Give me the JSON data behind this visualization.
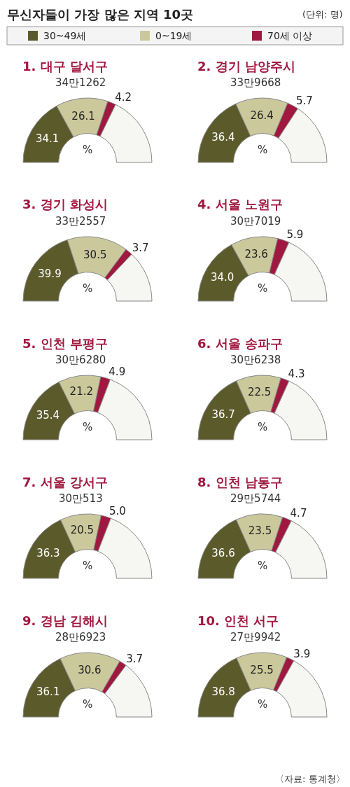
{
  "chart_data": [
    {
      "type": "other",
      "title": "무신자들이 가장 많은 지역 10곳",
      "subtitle": "(단위: 명)",
      "annotations": [
        "〈자료: 통계청〉"
      ]
    },
    {
      "type": "donut",
      "title": "1. 대구 달서구",
      "subtitle": "34만1262",
      "categories": [
        "30~49세",
        "0~19세",
        "70세 이상",
        null
      ],
      "values": [
        34.1,
        26.1,
        4.2,
        35.6
      ],
      "colors": [
        "#5b5a2b",
        "#cbc99c",
        "#a01840",
        "#f6f6f2"
      ],
      "value_labels": [
        "34.1",
        "26.1",
        "4.2",
        null
      ],
      "annotations": [
        "%"
      ],
      "legend": "top"
    },
    {
      "type": "donut",
      "title": "2. 경기 남양주시",
      "subtitle": "33만9668",
      "categories": [
        null,
        null,
        null,
        null
      ],
      "values": [
        36.4,
        26.4,
        5.7,
        31.5
      ],
      "colors": [
        "#5b5a2b",
        "#cbc99c",
        "#a01840",
        "#f6f6f2"
      ],
      "value_labels": [
        "36.4",
        "26.4",
        "5.7",
        null
      ],
      "annotations": [
        "%"
      ]
    },
    {
      "type": "donut",
      "title": "3. 경기 화성시",
      "subtitle": "33만2557",
      "categories": [
        null,
        null,
        null,
        null
      ],
      "values": [
        39.9,
        30.5,
        3.7,
        25.9
      ],
      "colors": [
        "#5b5a2b",
        "#cbc99c",
        "#a01840",
        "#f6f6f2"
      ],
      "value_labels": [
        "39.9",
        "30.5",
        "3.7",
        null
      ],
      "annotations": [
        "%"
      ]
    },
    {
      "type": "donut",
      "title": "4. 서울 노원구",
      "subtitle": "30만7019",
      "categories": [
        null,
        null,
        null,
        null
      ],
      "values": [
        34.0,
        23.6,
        5.9,
        36.5
      ],
      "colors": [
        "#5b5a2b",
        "#cbc99c",
        "#a01840",
        "#f6f6f2"
      ],
      "value_labels": [
        "34.0",
        "23.6",
        "5.9",
        null
      ],
      "annotations": [
        "%"
      ]
    },
    {
      "type": "donut",
      "title": "5. 인천 부평구",
      "subtitle": "30만6280",
      "categories": [
        null,
        null,
        null,
        null
      ],
      "values": [
        35.4,
        21.2,
        4.9,
        38.5
      ],
      "colors": [
        "#5b5a2b",
        "#cbc99c",
        "#a01840",
        "#f6f6f2"
      ],
      "value_labels": [
        "35.4",
        "21.2",
        "4.9",
        null
      ],
      "annotations": [
        "%"
      ]
    },
    {
      "type": "donut",
      "title": "6. 서울 송파구",
      "subtitle": "30만6238",
      "categories": [
        null,
        null,
        null,
        null
      ],
      "values": [
        36.7,
        22.5,
        4.3,
        36.5
      ],
      "colors": [
        "#5b5a2b",
        "#cbc99c",
        "#a01840",
        "#f6f6f2"
      ],
      "value_labels": [
        "36.7",
        "22.5",
        "4.3",
        null
      ],
      "annotations": [
        "%"
      ]
    },
    {
      "type": "donut",
      "title": "7. 서울 강서구",
      "subtitle": "30만513",
      "categories": [
        null,
        null,
        null,
        null
      ],
      "values": [
        36.3,
        20.5,
        5.0,
        38.2
      ],
      "colors": [
        "#5b5a2b",
        "#cbc99c",
        "#a01840",
        "#f6f6f2"
      ],
      "value_labels": [
        "36.3",
        "20.5",
        "5.0",
        null
      ],
      "annotations": [
        "%"
      ]
    },
    {
      "type": "donut",
      "title": "8. 인천 남동구",
      "subtitle": "29만5744",
      "categories": [
        null,
        null,
        null,
        null
      ],
      "values": [
        36.6,
        23.5,
        4.7,
        35.2
      ],
      "colors": [
        "#5b5a2b",
        "#cbc99c",
        "#a01840",
        "#f6f6f2"
      ],
      "value_labels": [
        "36.6",
        "23.5",
        "4.7",
        null
      ],
      "annotations": [
        "%"
      ]
    },
    {
      "type": "donut",
      "title": "9. 경남 김해시",
      "subtitle": "28만6923",
      "categories": [
        null,
        null,
        null,
        null
      ],
      "values": [
        36.1,
        30.6,
        3.7,
        29.6
      ],
      "colors": [
        "#5b5a2b",
        "#cbc99c",
        "#a01840",
        "#f6f6f2"
      ],
      "value_labels": [
        "36.1",
        "30.6",
        "3.7",
        null
      ],
      "annotations": [
        "%"
      ]
    },
    {
      "type": "donut",
      "title": "10. 인천 서구",
      "subtitle": "27만9942",
      "categories": [
        null,
        null,
        null,
        null
      ],
      "values": [
        36.8,
        25.5,
        3.9,
        33.8
      ],
      "colors": [
        "#5b5a2b",
        "#cbc99c",
        "#a01840",
        "#f6f6f2"
      ],
      "value_labels": [
        "36.8",
        "25.5",
        "3.9",
        null
      ],
      "annotations": [
        "%"
      ]
    }
  ]
}
